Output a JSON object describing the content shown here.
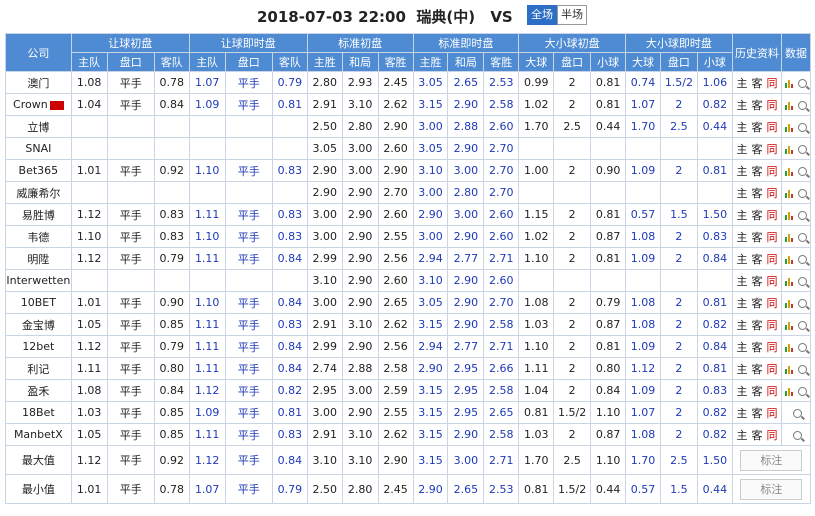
{
  "header": {
    "datetime": "2018-07-03 22:00",
    "home": "瑞典(中)",
    "vs": "VS",
    "away": "瑞士",
    "btn_full": "全场",
    "btn_half": "半场"
  },
  "columns": {
    "company": "公司",
    "groups": [
      "让球初盘",
      "让球即时盘",
      "标准初盘",
      "标准即时盘",
      "大小球初盘",
      "大小球即时盘"
    ],
    "hist": "历史资料",
    "data": "数据",
    "sub": [
      "主队",
      "盘口",
      "客队",
      "主队",
      "盘口",
      "客队",
      "主胜",
      "和局",
      "客胜",
      "主胜",
      "和局",
      "客胜",
      "大球",
      "盘口",
      "小球",
      "大球",
      "盘口",
      "小球"
    ]
  },
  "hist_labels": {
    "home": "主",
    "away": "客",
    "same": "同"
  },
  "rows": [
    {
      "company": "澳门",
      "v": [
        "1.08",
        "平手",
        "0.78",
        "1.07",
        "平手",
        "0.79",
        "2.80",
        "2.93",
        "2.45",
        "3.05",
        "2.65",
        "2.53",
        "0.99",
        "2",
        "0.81",
        "0.74",
        "1.5/2",
        "1.06"
      ],
      "bars": true
    },
    {
      "company": "Crown",
      "tag": true,
      "v": [
        "1.04",
        "平手",
        "0.84",
        "1.09",
        "平手",
        "0.81",
        "2.91",
        "3.10",
        "2.62",
        "3.15",
        "2.90",
        "2.58",
        "1.02",
        "2",
        "0.81",
        "1.07",
        "2",
        "0.82"
      ],
      "bars": true
    },
    {
      "company": "立博",
      "v": [
        "",
        "",
        "",
        "",
        "",
        "",
        "2.50",
        "2.80",
        "2.90",
        "3.00",
        "2.88",
        "2.60",
        "1.70",
        "2.5",
        "0.44",
        "1.70",
        "2.5",
        "0.44"
      ],
      "bars": true
    },
    {
      "company": "SNAI",
      "v": [
        "",
        "",
        "",
        "",
        "",
        "",
        "3.05",
        "3.00",
        "2.60",
        "3.05",
        "2.90",
        "2.70",
        "",
        "",
        "",
        "",
        "",
        ""
      ],
      "bars": true
    },
    {
      "company": "Bet365",
      "v": [
        "1.01",
        "平手",
        "0.92",
        "1.10",
        "平手",
        "0.83",
        "2.90",
        "3.00",
        "2.90",
        "3.10",
        "3.00",
        "2.70",
        "1.00",
        "2",
        "0.90",
        "1.09",
        "2",
        "0.81"
      ],
      "bars": true
    },
    {
      "company": "威廉希尔",
      "v": [
        "",
        "",
        "",
        "",
        "",
        "",
        "2.90",
        "2.90",
        "2.70",
        "3.00",
        "2.80",
        "2.70",
        "",
        "",
        "",
        "",
        "",
        ""
      ],
      "bars": true
    },
    {
      "company": "易胜博",
      "v": [
        "1.12",
        "平手",
        "0.83",
        "1.11",
        "平手",
        "0.83",
        "3.00",
        "2.90",
        "2.60",
        "2.90",
        "3.00",
        "2.60",
        "1.15",
        "2",
        "0.81",
        "0.57",
        "1.5",
        "1.50"
      ],
      "bars": true
    },
    {
      "company": "韦德",
      "v": [
        "1.10",
        "平手",
        "0.83",
        "1.10",
        "平手",
        "0.83",
        "3.00",
        "2.90",
        "2.55",
        "3.00",
        "2.90",
        "2.60",
        "1.02",
        "2",
        "0.87",
        "1.08",
        "2",
        "0.83"
      ],
      "bars": true
    },
    {
      "company": "明陞",
      "v": [
        "1.12",
        "平手",
        "0.79",
        "1.11",
        "平手",
        "0.84",
        "2.99",
        "2.90",
        "2.56",
        "2.94",
        "2.77",
        "2.71",
        "1.10",
        "2",
        "0.81",
        "1.09",
        "2",
        "0.84"
      ],
      "bars": true
    },
    {
      "company": "Interwetten",
      "v": [
        "",
        "",
        "",
        "",
        "",
        "",
        "3.10",
        "2.90",
        "2.60",
        "3.10",
        "2.90",
        "2.60",
        "",
        "",
        "",
        "",
        "",
        ""
      ],
      "bars": true
    },
    {
      "company": "10BET",
      "v": [
        "1.01",
        "平手",
        "0.90",
        "1.10",
        "平手",
        "0.84",
        "3.00",
        "2.90",
        "2.65",
        "3.05",
        "2.90",
        "2.70",
        "1.08",
        "2",
        "0.79",
        "1.08",
        "2",
        "0.81"
      ],
      "bars": true
    },
    {
      "company": "金宝博",
      "v": [
        "1.05",
        "平手",
        "0.85",
        "1.11",
        "平手",
        "0.83",
        "2.91",
        "3.10",
        "2.62",
        "3.15",
        "2.90",
        "2.58",
        "1.03",
        "2",
        "0.87",
        "1.08",
        "2",
        "0.82"
      ],
      "bars": true
    },
    {
      "company": "12bet",
      "v": [
        "1.12",
        "平手",
        "0.79",
        "1.11",
        "平手",
        "0.84",
        "2.99",
        "2.90",
        "2.56",
        "2.94",
        "2.77",
        "2.71",
        "1.10",
        "2",
        "0.81",
        "1.09",
        "2",
        "0.84"
      ],
      "bars": true
    },
    {
      "company": "利记",
      "v": [
        "1.11",
        "平手",
        "0.80",
        "1.11",
        "平手",
        "0.84",
        "2.74",
        "2.88",
        "2.58",
        "2.90",
        "2.95",
        "2.66",
        "1.11",
        "2",
        "0.80",
        "1.12",
        "2",
        "0.81"
      ],
      "bars": true
    },
    {
      "company": "盈禾",
      "v": [
        "1.08",
        "平手",
        "0.84",
        "1.12",
        "平手",
        "0.82",
        "2.95",
        "3.00",
        "2.59",
        "3.15",
        "2.95",
        "2.58",
        "1.04",
        "2",
        "0.84",
        "1.09",
        "2",
        "0.83"
      ],
      "bars": true
    },
    {
      "company": "18Bet",
      "v": [
        "1.03",
        "平手",
        "0.85",
        "1.09",
        "平手",
        "0.81",
        "3.00",
        "2.90",
        "2.55",
        "3.15",
        "2.95",
        "2.65",
        "0.81",
        "1.5/2",
        "1.10",
        "1.07",
        "2",
        "0.82"
      ],
      "bars": false
    },
    {
      "company": "ManbetX",
      "v": [
        "1.05",
        "平手",
        "0.85",
        "1.11",
        "平手",
        "0.83",
        "2.91",
        "3.10",
        "2.62",
        "3.15",
        "2.90",
        "2.58",
        "1.03",
        "2",
        "0.87",
        "1.08",
        "2",
        "0.82"
      ],
      "bars": false
    }
  ],
  "summary": [
    {
      "label": "最大值",
      "v": [
        "1.12",
        "平手",
        "0.92",
        "1.12",
        "平手",
        "0.84",
        "3.10",
        "3.10",
        "2.90",
        "3.15",
        "3.00",
        "2.71",
        "1.70",
        "2.5",
        "1.10",
        "1.70",
        "2.5",
        "1.50"
      ],
      "note": "标注"
    },
    {
      "label": "最小值",
      "v": [
        "1.01",
        "平手",
        "0.78",
        "1.07",
        "平手",
        "0.79",
        "2.50",
        "2.80",
        "2.45",
        "2.90",
        "2.65",
        "2.53",
        "0.81",
        "1.5/2",
        "0.44",
        "0.57",
        "1.5",
        "0.44"
      ],
      "note": "标注"
    }
  ],
  "colors": {
    "header_bg": "#4e8bd3",
    "blue_text": "#1f3ab8",
    "red": "#cc0000",
    "border": "#c9d5e6"
  }
}
